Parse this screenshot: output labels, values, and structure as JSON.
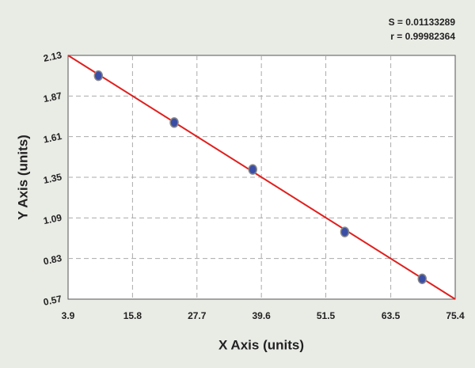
{
  "chart_data": {
    "type": "scatter",
    "x_label": "X Axis (units)",
    "y_label": "Y Axis (units)",
    "annotations": [
      "S = 0.01133289",
      "r = 0.99982364"
    ],
    "series": [
      {
        "color": "#3b4ea6",
        "x": [
          9.5,
          23.5,
          38.0,
          55.0,
          69.3
        ],
        "values": [
          2.0,
          1.7,
          1.4,
          1.0,
          0.7
        ]
      }
    ],
    "fit": {
      "color": "#e0201e",
      "x": [
        3.9,
        75.4
      ],
      "values": [
        2.13,
        0.57
      ]
    },
    "xlim": [
      3.9,
      75.4
    ],
    "xticks": [
      3.9,
      15.8,
      27.7,
      39.6,
      51.5,
      63.5,
      75.4
    ],
    "ylim": [
      0.57,
      2.13
    ],
    "yticks": [
      0.57,
      0.83,
      1.09,
      1.35,
      1.61,
      1.87,
      2.13
    ],
    "grid": true
  }
}
